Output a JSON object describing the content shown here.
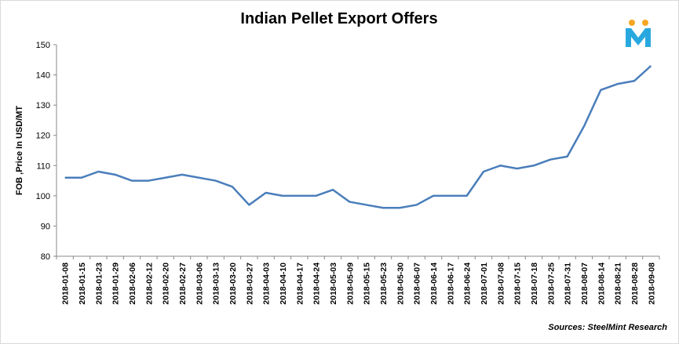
{
  "chart_data": {
    "type": "line",
    "title": "Indian Pellet Export Offers",
    "y_label": "FOB ,Price In USD/MT",
    "source": "Sources: SteelMint Research",
    "categories": [
      "2018-01-08",
      "2018-01-15",
      "2018-01-23",
      "2018-01-29",
      "2018-02-06",
      "2018-02-12",
      "2018-02-20",
      "2018-02-27",
      "2018-03-06",
      "2018-03-13",
      "2018-03-20",
      "2018-03-27",
      "2018-04-03",
      "2018-04-10",
      "2018-04-17",
      "2018-04-24",
      "2018-05-03",
      "2018-05-09",
      "2018-05-15",
      "2018-05-23",
      "2018-05-30",
      "2018-06-07",
      "2018-06-14",
      "2018-06-17",
      "2018-06-24",
      "2018-07-01",
      "2018-07-08",
      "2018-07-15",
      "2018-07-18",
      "2018-07-25",
      "2018-07-31",
      "2018-08-07",
      "2018-08-14",
      "2018-08-21",
      "2018-08-28",
      "2018-09-08"
    ],
    "values": [
      106,
      106,
      108,
      107,
      105,
      105,
      106,
      107,
      106,
      105,
      103,
      97,
      101,
      100,
      100,
      100,
      102,
      98,
      97,
      96,
      96,
      97,
      100,
      100,
      100,
      108,
      110,
      109,
      110,
      112,
      113,
      123,
      135,
      137,
      138,
      143
    ],
    "color": "#4a7ebb",
    "ylim": [
      80,
      150
    ],
    "yticks": [
      80,
      90,
      100,
      110,
      120,
      130,
      140,
      150
    ],
    "grid": false
  }
}
